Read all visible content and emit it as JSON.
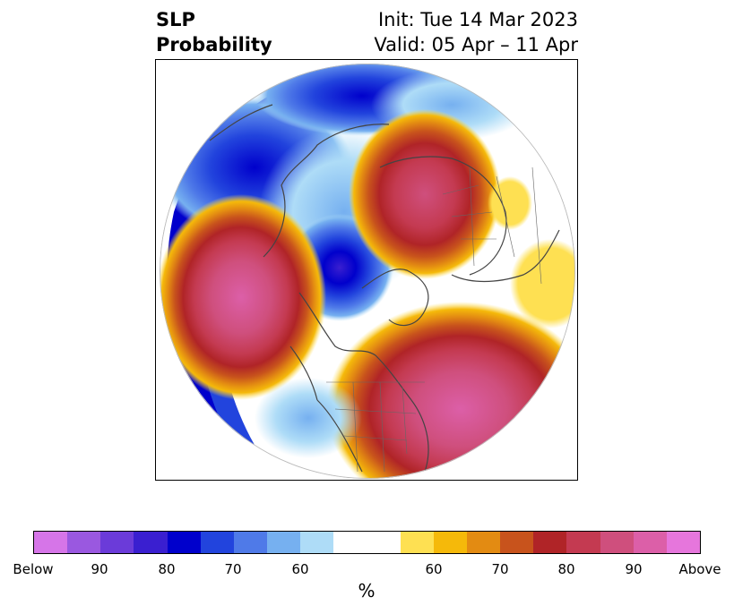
{
  "header": {
    "title_line1": "SLP",
    "title_line2": "Probability",
    "init": "Init: Tue 14 Mar 2023",
    "valid": "Valid: 05 Apr – 11 Apr"
  },
  "colorbar": {
    "below_colors": [
      "#d675e8",
      "#9a58e0",
      "#6b3bd9",
      "#3a1fd0",
      "#0000cc",
      "#2244dd",
      "#4f7ae8",
      "#76b0f0",
      "#aedcf7"
    ],
    "neutral_color": "#ffffff",
    "above_colors": [
      "#fee052",
      "#f5b90a",
      "#e38b12",
      "#c8531c",
      "#b02427",
      "#c43a51",
      "#cf4f7d",
      "#dc5fa8",
      "#e676dc"
    ],
    "tick_labels": [
      "Below",
      "90",
      "80",
      "70",
      "60",
      "60",
      "70",
      "80",
      "90",
      "Above"
    ],
    "unit": "%"
  },
  "map": {
    "projection": "north-polar-stereographic",
    "field": "SLP probability",
    "features": [
      {
        "type": "below",
        "category": "70-80"
      },
      {
        "type": "below",
        "category": "80-90"
      },
      {
        "type": "above",
        "category": "80-90"
      },
      {
        "type": "above",
        "category": "90-Above"
      }
    ]
  }
}
